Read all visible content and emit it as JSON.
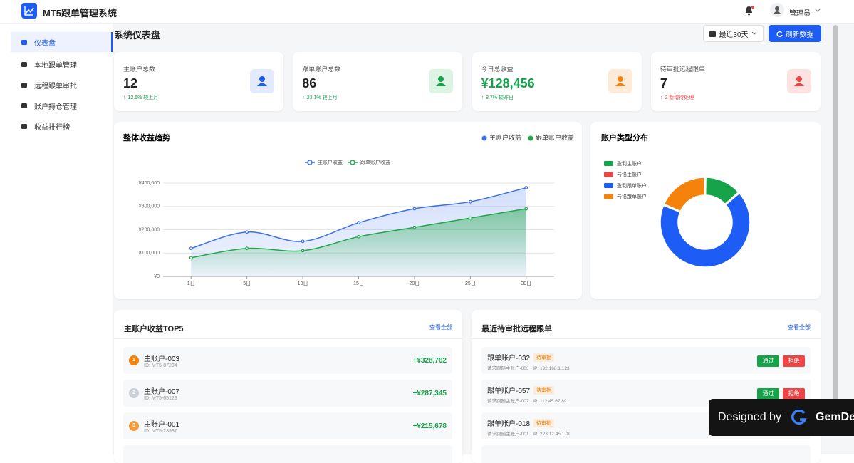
{
  "header": {
    "title": "MT5跟单管理系统",
    "user": "管理员"
  },
  "sidebar": {
    "items": [
      "仪表盘",
      "本地跟单管理",
      "远程跟单审批",
      "账户持仓管理",
      "收益排行榜"
    ]
  },
  "page": {
    "title": "系统仪表盘",
    "range": "最近30天",
    "refresh": "刷新数据"
  },
  "stats": [
    {
      "label": "主账户总数",
      "value": 12,
      "trend": "12.5% 较上月"
    },
    {
      "label": "跟单账户总数",
      "value": 86,
      "trend": "23.1% 较上月"
    },
    {
      "label": "今日总收益",
      "value": "¥128,456",
      "trend": "8.7% 较昨日"
    },
    {
      "label": "待审批远程跟单",
      "value": 7,
      "trend": "2 新增待处理"
    }
  ],
  "trend_chart": {
    "type": "line",
    "title": "整体收益趋势",
    "categories": [
      "1日",
      "5日",
      "10日",
      "15日",
      "20日",
      "25日",
      "30日"
    ],
    "series": [
      {
        "name": "主账户收益",
        "color": "#3a6ff0",
        "values": [
          120000,
          190000,
          150000,
          230000,
          290000,
          320000,
          380000
        ]
      },
      {
        "name": "跟单账户收益",
        "color": "#22a84a",
        "values": [
          80000,
          120000,
          110000,
          170000,
          210000,
          250000,
          290000
        ]
      }
    ],
    "ylim": [
      0,
      400000
    ],
    "yticks": [
      {
        "value": 0,
        "label": "¥0"
      },
      {
        "value": 100000,
        "label": "¥100,000"
      },
      {
        "value": 200000,
        "label": "¥200,000"
      },
      {
        "value": 300000,
        "label": "¥300,000"
      },
      {
        "value": 400000,
        "label": "¥400,000"
      }
    ],
    "grid": true
  },
  "pie_chart": {
    "type": "donut",
    "title": "账户类型分布",
    "categories": [
      "盈利主账户",
      "亏损主账户",
      "盈利跟单账户",
      "亏损跟单账户"
    ],
    "values": [
      8,
      0,
      40,
      11
    ],
    "colors": [
      "#16a34a",
      "#ef4444",
      "#1d5cf5",
      "#f5830b"
    ]
  },
  "top5": {
    "title": "主账户收益TOP5",
    "more": "查看全部",
    "rows": [
      {
        "rank": 1,
        "name": "主账户-003",
        "id": "ID: MT5-87234",
        "profit": "+¥328,762"
      },
      {
        "rank": 2,
        "name": "主账户-007",
        "id": "ID: MT5-65128",
        "profit": "+¥287,345"
      },
      {
        "rank": 3,
        "name": "主账户-001",
        "id": "ID: MT5-23987",
        "profit": "+¥215,678"
      }
    ]
  },
  "pending": {
    "title": "最近待审批远程跟单",
    "more": "查看全部",
    "approve": "通过",
    "reject": "拒绝",
    "rows": [
      {
        "name": "跟单账户-032",
        "status": "待审批",
        "detail": "请求跟随主账户-003 · IP: 192.168.1.123"
      },
      {
        "name": "跟单账户-057",
        "status": "待审批",
        "detail": "请求跟随主账户-007 · IP: 112.45.67.89"
      },
      {
        "name": "跟单账户-018",
        "status": "待审批",
        "detail": "请求跟随主账户-001 · IP: 223.12.45.178"
      }
    ]
  },
  "badge": {
    "designed": "Designed by",
    "brand": "GemDe"
  }
}
